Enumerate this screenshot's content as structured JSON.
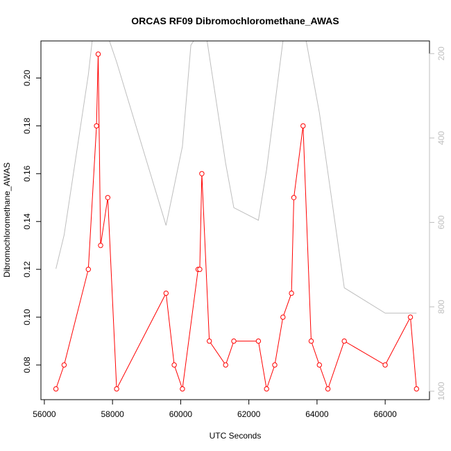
{
  "chart_data": {
    "type": "line",
    "title": "ORCAS RF09 Dibromochloromethane_AWAS",
    "xlabel": "UTC Seconds",
    "ylabel": "Dibromochloromethane_AWAS",
    "xlim": [
      55900,
      67300
    ],
    "ylim": [
      0.0655,
      0.2155
    ],
    "y2lim": [
      1020,
      170
    ],
    "x_ticks": [
      56000,
      58000,
      60000,
      62000,
      64000,
      66000
    ],
    "y_ticks": [
      0.08,
      0.1,
      0.12,
      0.14,
      0.16,
      0.18,
      0.2
    ],
    "y2_ticks": [
      200,
      400,
      600,
      800,
      1000
    ],
    "colors": {
      "primary": "#ff0000",
      "secondary": "#bebebe",
      "axis": "#000000"
    },
    "series": [
      {
        "axis": "left",
        "style": "line+points",
        "x": [
          56340,
          56580,
          57290,
          57530,
          57580,
          57650,
          57860,
          58120,
          59570,
          59810,
          60050,
          60510,
          60560,
          60620,
          60840,
          61320,
          61560,
          62280,
          62520,
          62760,
          63000,
          63250,
          63320,
          63590,
          63830,
          64070,
          64320,
          64800,
          66000,
          66740,
          66920
        ],
        "y": [
          0.07,
          0.08,
          0.12,
          0.18,
          0.21,
          0.13,
          0.15,
          0.07,
          0.11,
          0.08,
          0.07,
          0.12,
          0.12,
          0.16,
          0.09,
          0.08,
          0.09,
          0.09,
          0.07,
          0.08,
          0.1,
          0.11,
          0.15,
          0.18,
          0.09,
          0.08,
          0.07,
          0.09,
          0.08,
          0.1,
          0.07
        ]
      },
      {
        "axis": "right",
        "style": "line",
        "x": [
          56340,
          56580,
          57290,
          57530,
          58120,
          59570,
          60050,
          60300,
          60700,
          61320,
          61560,
          62280,
          62520,
          63000,
          63590,
          64070,
          64800,
          66000,
          66920
        ],
        "y": [
          710,
          630,
          250,
          80,
          220,
          607,
          420,
          180,
          130,
          460,
          565,
          595,
          475,
          170,
          130,
          340,
          755,
          815,
          815
        ]
      }
    ]
  }
}
